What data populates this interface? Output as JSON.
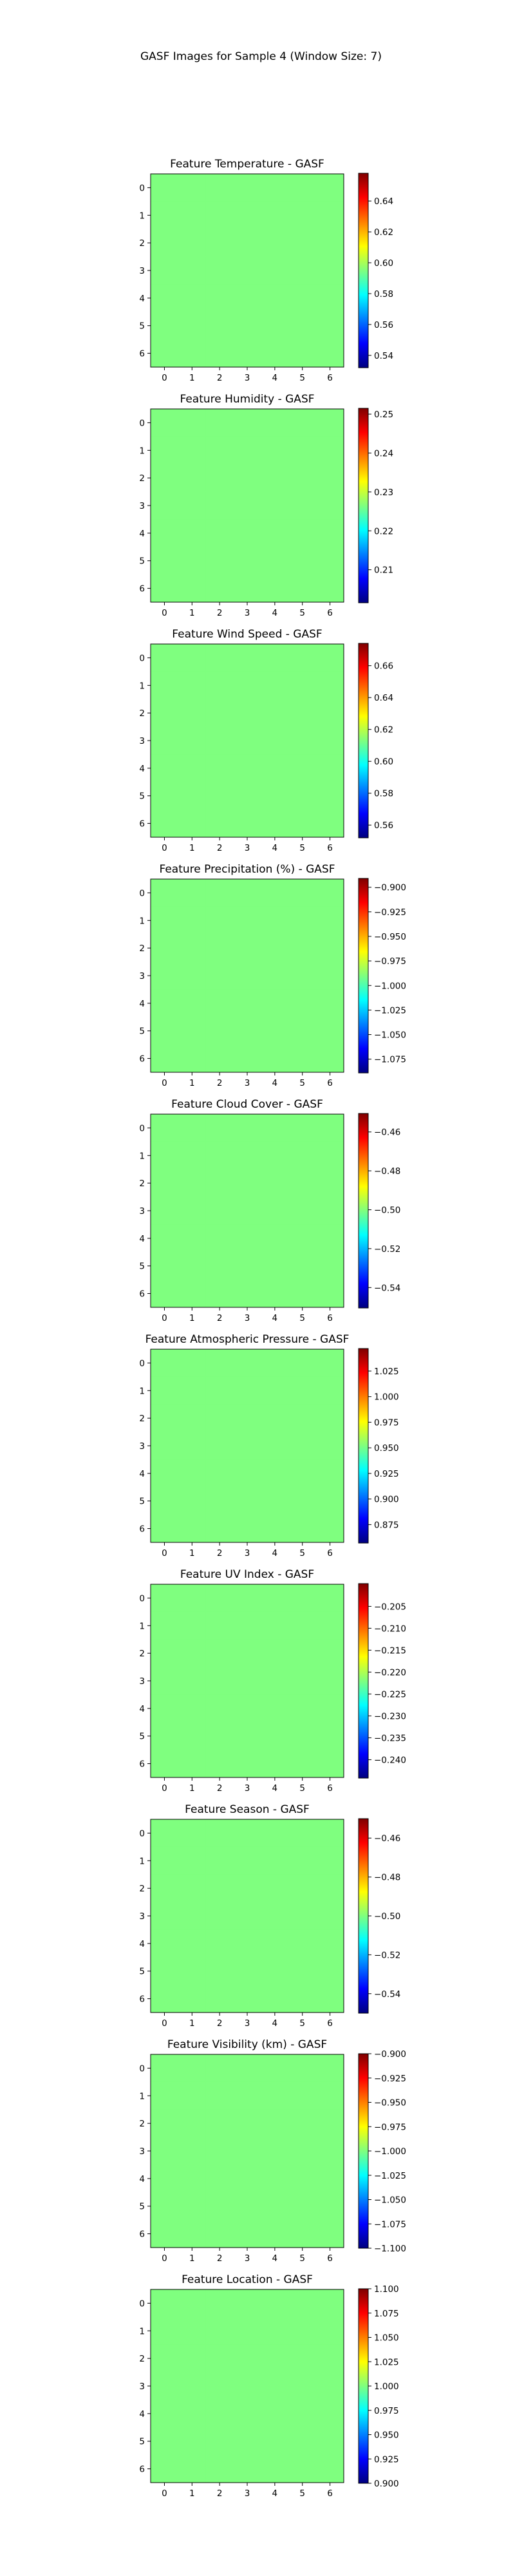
{
  "figure": {
    "suptitle": "GASF Images for Sample 4 (Window Size: 7)"
  },
  "colormap": {
    "name": "jet",
    "stops": [
      "#00007f",
      "#0000ff",
      "#007fff",
      "#00ffff",
      "#7fff7f",
      "#ffff00",
      "#ff7f00",
      "#ff0000",
      "#7f0000"
    ],
    "uniform_cell_color": "#7fff7f"
  },
  "chart_data": [
    {
      "type": "heatmap",
      "title": "Feature Temperature - GASF",
      "x_ticks": [
        "0",
        "1",
        "2",
        "3",
        "4",
        "5",
        "6"
      ],
      "y_ticks": [
        "0",
        "1",
        "2",
        "3",
        "4",
        "5",
        "6"
      ],
      "value": 0.595,
      "clim": [
        0.532,
        0.658
      ],
      "colorbar_ticks": [
        "0.54",
        "0.56",
        "0.58",
        "0.60",
        "0.62",
        "0.64"
      ]
    },
    {
      "type": "heatmap",
      "title": "Feature Humidity - GASF",
      "x_ticks": [
        "0",
        "1",
        "2",
        "3",
        "4",
        "5",
        "6"
      ],
      "y_ticks": [
        "0",
        "1",
        "2",
        "3",
        "4",
        "5",
        "6"
      ],
      "value": 0.2265,
      "clim": [
        0.2015,
        0.2515
      ],
      "colorbar_ticks": [
        "0.21",
        "0.22",
        "0.23",
        "0.24",
        "0.25"
      ]
    },
    {
      "type": "heatmap",
      "title": "Feature Wind Speed - GASF",
      "x_ticks": [
        "0",
        "1",
        "2",
        "3",
        "4",
        "5",
        "6"
      ],
      "y_ticks": [
        "0",
        "1",
        "2",
        "3",
        "4",
        "5",
        "6"
      ],
      "value": 0.613,
      "clim": [
        0.552,
        0.674
      ],
      "colorbar_ticks": [
        "0.56",
        "0.58",
        "0.60",
        "0.62",
        "0.64",
        "0.66"
      ]
    },
    {
      "type": "heatmap",
      "title": "Feature Precipitation (%) - GASF",
      "x_ticks": [
        "0",
        "1",
        "2",
        "3",
        "4",
        "5",
        "6"
      ],
      "y_ticks": [
        "0",
        "1",
        "2",
        "3",
        "4",
        "5",
        "6"
      ],
      "value": -0.99,
      "clim": [
        -1.089,
        -0.891
      ],
      "colorbar_ticks": [
        "−1.075",
        "−1.050",
        "−1.025",
        "−1.000",
        "−0.975",
        "−0.950",
        "−0.925",
        "−0.900"
      ]
    },
    {
      "type": "heatmap",
      "title": "Feature Cloud Cover - GASF",
      "x_ticks": [
        "0",
        "1",
        "2",
        "3",
        "4",
        "5",
        "6"
      ],
      "y_ticks": [
        "0",
        "1",
        "2",
        "3",
        "4",
        "5",
        "6"
      ],
      "value": -0.5005,
      "clim": [
        -0.5505,
        -0.4505
      ],
      "colorbar_ticks": [
        "−0.54",
        "−0.52",
        "−0.50",
        "−0.48",
        "−0.46"
      ]
    },
    {
      "type": "heatmap",
      "title": "Feature Atmospheric Pressure - GASF",
      "x_ticks": [
        "0",
        "1",
        "2",
        "3",
        "4",
        "5",
        "6"
      ],
      "y_ticks": [
        "0",
        "1",
        "2",
        "3",
        "4",
        "5",
        "6"
      ],
      "value": 0.952,
      "clim": [
        0.857,
        1.047
      ],
      "colorbar_ticks": [
        "0.875",
        "0.900",
        "0.925",
        "0.950",
        "0.975",
        "1.000",
        "1.025"
      ]
    },
    {
      "type": "heatmap",
      "title": "Feature UV Index - GASF",
      "x_ticks": [
        "0",
        "1",
        "2",
        "3",
        "4",
        "5",
        "6"
      ],
      "y_ticks": [
        "0",
        "1",
        "2",
        "3",
        "4",
        "5",
        "6"
      ],
      "value": -0.222,
      "clim": [
        -0.2442,
        -0.1998
      ],
      "colorbar_ticks": [
        "−0.240",
        "−0.235",
        "−0.230",
        "−0.225",
        "−0.220",
        "−0.215",
        "−0.210",
        "−0.205"
      ]
    },
    {
      "type": "heatmap",
      "title": "Feature Season - GASF",
      "x_ticks": [
        "0",
        "1",
        "2",
        "3",
        "4",
        "5",
        "6"
      ],
      "y_ticks": [
        "0",
        "1",
        "2",
        "3",
        "4",
        "5",
        "6"
      ],
      "value": -0.5,
      "clim": [
        -0.55,
        -0.45
      ],
      "colorbar_ticks": [
        "−0.54",
        "−0.52",
        "−0.50",
        "−0.48",
        "−0.46"
      ]
    },
    {
      "type": "heatmap",
      "title": "Feature Visibility (km) - GASF",
      "x_ticks": [
        "0",
        "1",
        "2",
        "3",
        "4",
        "5",
        "6"
      ],
      "y_ticks": [
        "0",
        "1",
        "2",
        "3",
        "4",
        "5",
        "6"
      ],
      "value": -1.0,
      "clim": [
        -1.1,
        -0.9
      ],
      "colorbar_ticks": [
        "−1.100",
        "−1.075",
        "−1.050",
        "−1.025",
        "−1.000",
        "−0.975",
        "−0.950",
        "−0.925",
        "−0.900"
      ]
    },
    {
      "type": "heatmap",
      "title": "Feature Location - GASF",
      "x_ticks": [
        "0",
        "1",
        "2",
        "3",
        "4",
        "5",
        "6"
      ],
      "y_ticks": [
        "0",
        "1",
        "2",
        "3",
        "4",
        "5",
        "6"
      ],
      "value": 1.0,
      "clim": [
        0.9,
        1.1
      ],
      "colorbar_ticks": [
        "0.900",
        "0.925",
        "0.950",
        "0.975",
        "1.000",
        "1.025",
        "1.050",
        "1.075",
        "1.100"
      ]
    }
  ]
}
